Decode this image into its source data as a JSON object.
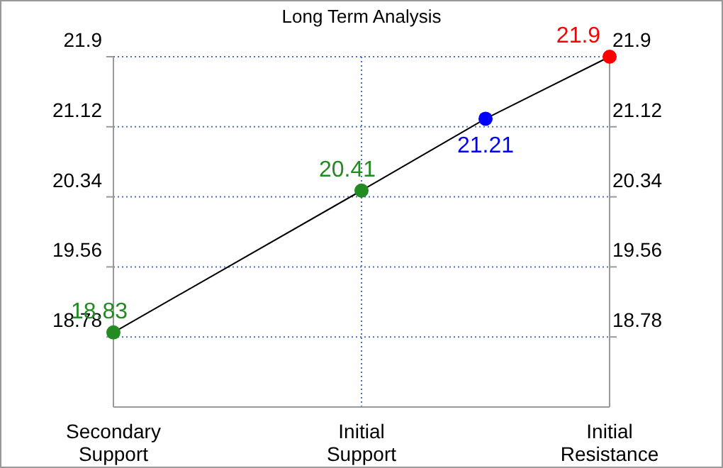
{
  "chart_data": {
    "type": "line",
    "title": "Long Term Analysis",
    "categories": [
      "Secondary\nSupport",
      null,
      null,
      null,
      "Initial\nSupport",
      null,
      null,
      null,
      "Initial\nResistance"
    ],
    "ylim": [
      18,
      21.9
    ],
    "yticks": [
      18.78,
      19.56,
      20.34,
      21.12,
      21.9
    ],
    "y2lim": [
      18,
      21.9
    ],
    "y2ticks": [
      18.78,
      19.56,
      20.34,
      21.12,
      21.9
    ],
    "grid": true,
    "marker": "circle",
    "data_labels": true,
    "series": [
      {
        "color": "#000000",
        "colors": [
          "#228b22",
          null,
          null,
          null,
          "#228b22",
          null,
          "#0000ff",
          null,
          "#ff0000"
        ],
        "values": [
          18.83,
          null,
          null,
          null,
          20.41,
          null,
          21.21,
          null,
          21.9
        ]
      }
    ]
  }
}
